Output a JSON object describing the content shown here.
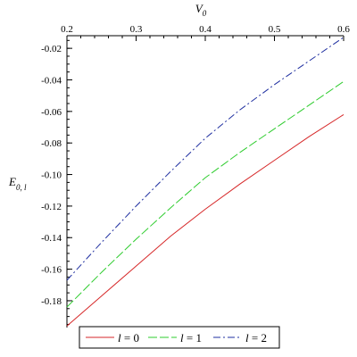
{
  "chart_data": {
    "type": "line",
    "x_axis": {
      "label": "V",
      "label_subscript": "0",
      "position": "top",
      "range": [
        0.2,
        0.6
      ],
      "ticks": [
        "0.2",
        "0.3",
        "0.4",
        "0.5",
        "0.6"
      ]
    },
    "y_axis": {
      "label": "E",
      "label_subscript": "0, l",
      "position": "left",
      "range": [
        -0.197,
        -0.012
      ],
      "ticks": [
        "-0.02",
        "-0.04",
        "-0.06",
        "-0.08",
        "-0.10",
        "-0.12",
        "-0.14",
        "-0.16",
        "-0.18"
      ]
    },
    "grid": false,
    "legend_position": "bottom",
    "series": [
      {
        "name": "l = 0",
        "var": "l",
        "value": "0",
        "color": "#d62728",
        "dash": "solid",
        "x": [
          0.2,
          0.25,
          0.3,
          0.35,
          0.4,
          0.45,
          0.5,
          0.55,
          0.6
        ],
        "y": [
          -0.196,
          -0.177,
          -0.158,
          -0.139,
          -0.122,
          -0.106,
          -0.091,
          -0.076,
          -0.062
        ]
      },
      {
        "name": "l = 1",
        "var": "l",
        "value": "1",
        "color": "#2ecc2e",
        "dash": "long-dash",
        "x": [
          0.2,
          0.25,
          0.3,
          0.35,
          0.4,
          0.45,
          0.5,
          0.55,
          0.6
        ],
        "y": [
          -0.184,
          -0.162,
          -0.141,
          -0.121,
          -0.102,
          -0.086,
          -0.071,
          -0.056,
          -0.041
        ]
      },
      {
        "name": "l = 2",
        "var": "l",
        "value": "2",
        "color": "#1f2fa0",
        "dash": "dash-dot",
        "x": [
          0.2,
          0.25,
          0.3,
          0.35,
          0.4,
          0.45,
          0.5,
          0.55,
          0.6
        ],
        "y": [
          -0.167,
          -0.143,
          -0.12,
          -0.098,
          -0.077,
          -0.059,
          -0.043,
          -0.028,
          -0.013
        ]
      }
    ]
  }
}
